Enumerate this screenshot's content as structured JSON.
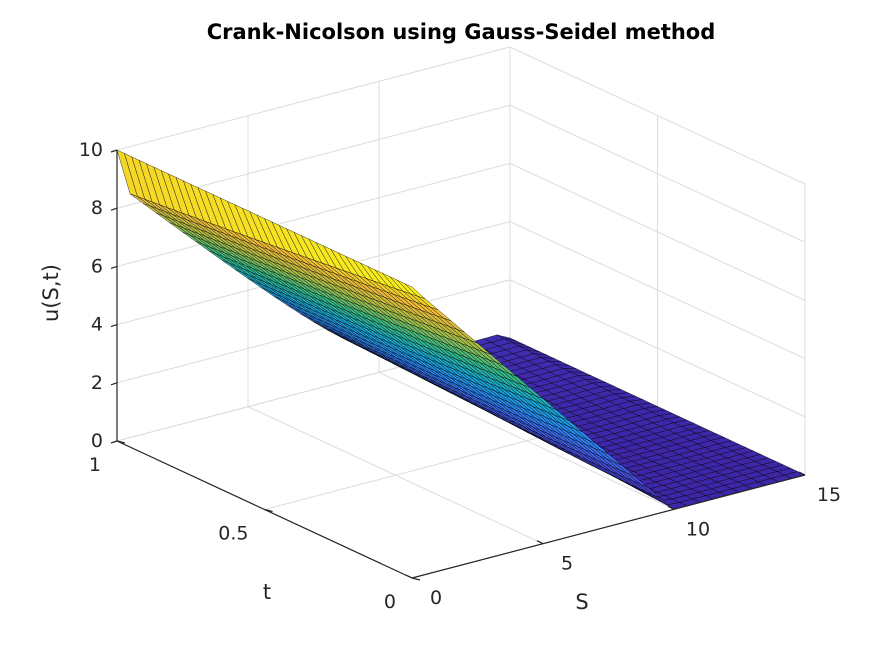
{
  "chart_data": {
    "type": "surface",
    "title": "Crank-Nicolson using Gauss-Seidel method",
    "xlabel": "S",
    "ylabel": "t",
    "zlabel": "u(S,t)",
    "xlim": [
      0,
      15
    ],
    "ylim": [
      0,
      1
    ],
    "zlim": [
      0,
      10
    ],
    "xticks": [
      "0",
      "5",
      "10",
      "15"
    ],
    "yticks": [
      "0",
      "0.5",
      "1"
    ],
    "zticks": [
      "0",
      "2",
      "4",
      "6",
      "8",
      "10"
    ],
    "strike_K": 10,
    "S_max": 15,
    "t_max": 1,
    "surface_function": "u(S,t) = max(K - S, 0) at t = 0, smoothed as t increases; u(0,t) = K, u(S_max,t) = 0",
    "grid_points": {
      "S": 31,
      "t": 41
    },
    "colormap": [
      "#3e26a8",
      "#4757e3",
      "#2c86f5",
      "#17a9d4",
      "#33bb87",
      "#a8bf47",
      "#f1ba38",
      "#f9fb15"
    ],
    "grid": true,
    "view": "3d"
  }
}
